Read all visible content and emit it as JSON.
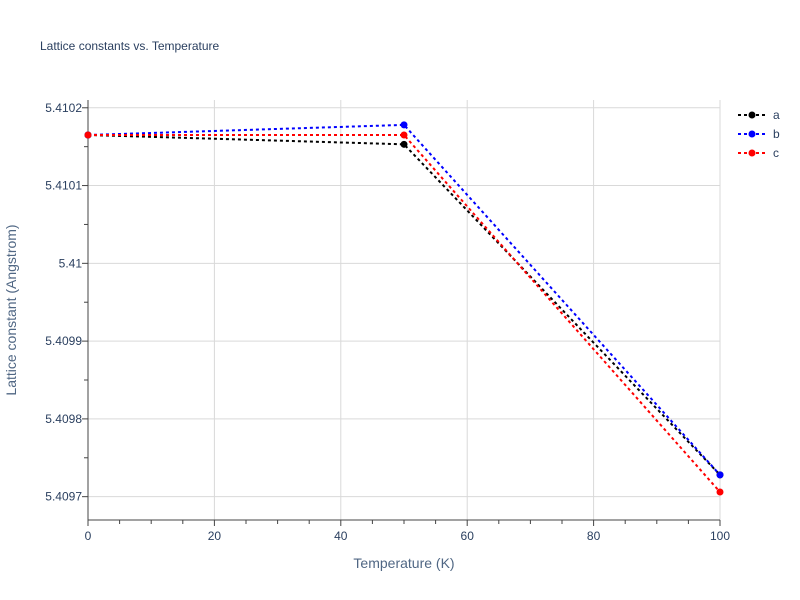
{
  "chart_data": {
    "type": "line",
    "title": "Lattice constants vs. Temperature",
    "xlabel": "Temperature (K)",
    "ylabel": "Lattice constant (Angstrom)",
    "x": [
      0,
      50,
      100
    ],
    "xlim": [
      0,
      100
    ],
    "ylim": [
      5.40967,
      5.41021
    ],
    "x_ticks": [
      0,
      20,
      40,
      60,
      80,
      100
    ],
    "x_tick_labels": [
      "0",
      "20",
      "40",
      "60",
      "80",
      "100"
    ],
    "y_ticks": [
      5.4097,
      5.4098,
      5.4099,
      5.41,
      5.4101,
      5.4102
    ],
    "y_tick_labels": [
      "5.4097",
      "5.4098",
      "5.4099",
      "5.41",
      "5.4101",
      "5.4102"
    ],
    "grid": true,
    "legend_position": "top-right",
    "series": [
      {
        "name": "a",
        "color": "#000000",
        "values": [
          5.410165,
          5.410153,
          5.409728
        ]
      },
      {
        "name": "b",
        "color": "#0000ff",
        "values": [
          5.410165,
          5.410178,
          5.409728
        ]
      },
      {
        "name": "c",
        "color": "#ff0000",
        "values": [
          5.410165,
          5.410165,
          5.409706
        ]
      }
    ]
  }
}
